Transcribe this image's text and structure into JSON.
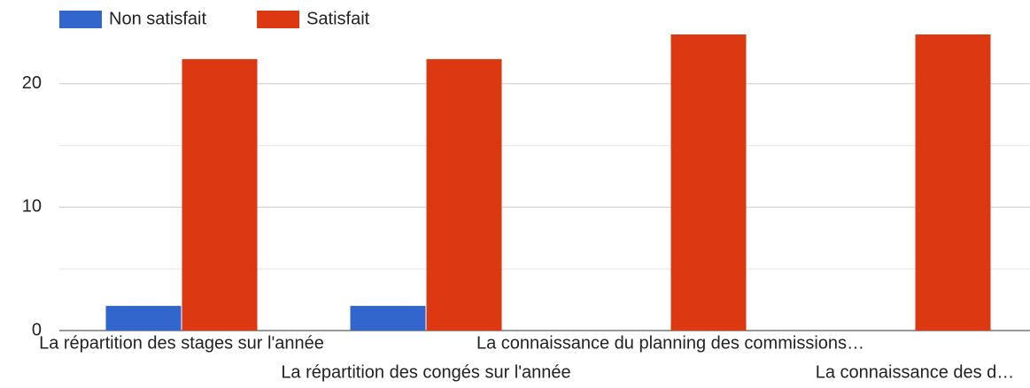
{
  "chart_data": {
    "type": "bar",
    "categories": [
      "La répartition des stages sur l'année",
      "La répartition des congés sur l'année",
      "La connaissance du planning des commissions…",
      "La connaissance des d…"
    ],
    "series": [
      {
        "name": "Non satisfait",
        "color": "#3366cc",
        "values": [
          2,
          2,
          0,
          0
        ]
      },
      {
        "name": "Satisfait",
        "color": "#dc3912",
        "values": [
          22,
          22,
          24,
          24
        ]
      }
    ],
    "ylim": [
      0,
      25
    ],
    "yticks": [
      0,
      10,
      20
    ],
    "minor_yticks": [
      5,
      15
    ],
    "grid": true,
    "legend": "top"
  }
}
